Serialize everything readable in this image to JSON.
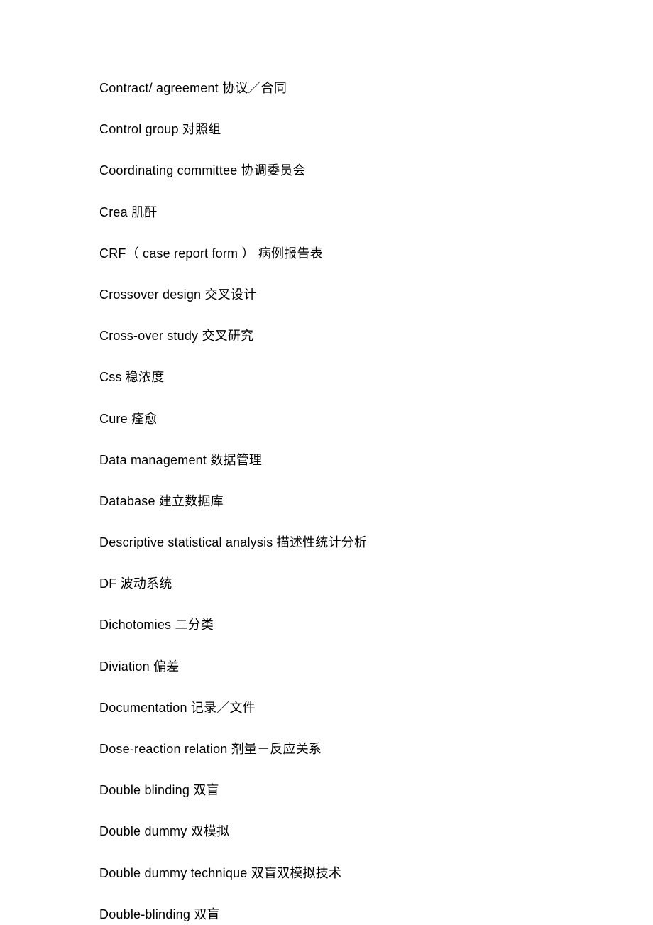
{
  "document": {
    "type": "glossary",
    "background_color": "#ffffff",
    "text_color": "#000000",
    "font_size": 18,
    "line_spacing": 33,
    "terms": [
      "Contract/ agreement 协议／合同",
      "Control group 对照组",
      "Coordinating committee 协调委员会",
      "Crea 肌酐",
      "CRF（ case report form ） 病例报告表",
      "Crossover design 交叉设计",
      "Cross-over study 交叉研究",
      "Css 稳浓度",
      "Cure 痊愈",
      "Data management 数据管理",
      "Database 建立数据库",
      "Descriptive statistical analysis 描述性统计分析",
      "DF 波动系统",
      "Dichotomies 二分类",
      "Diviation 偏差",
      "Documentation 记录／文件",
      "Dose-reaction relation 剂量－反应关系",
      "Double blinding 双盲",
      "Double dummy 双模拟",
      "Double dummy technique 双盲双模拟技术",
      "Double-blinding 双盲"
    ]
  }
}
